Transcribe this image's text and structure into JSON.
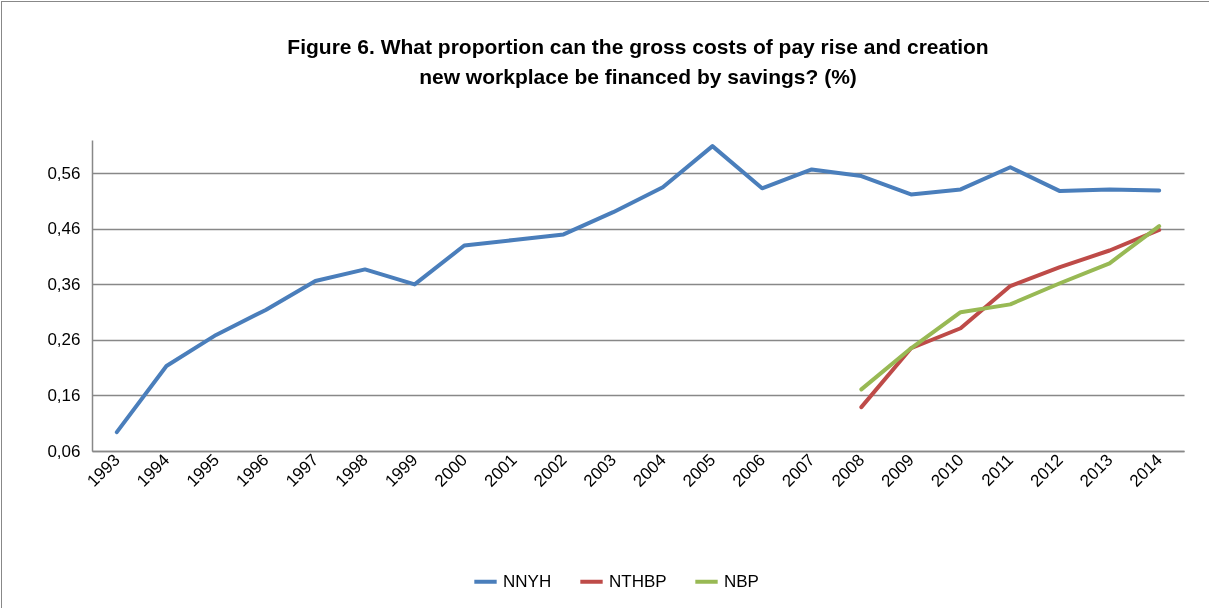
{
  "chart_data": {
    "type": "line",
    "title": "Figure 6. What proportion can the gross costs of pay rise and creation\nnew workplace be financed by savings? (%)",
    "categories": [
      "1993",
      "1994",
      "1995",
      "1996",
      "1997",
      "1998",
      "1999",
      "2000",
      "2001",
      "2002",
      "2003",
      "2004",
      "2005",
      "2006",
      "2007",
      "2008",
      "2009",
      "2010",
      "2011",
      "2012",
      "2013",
      "2014"
    ],
    "series": [
      {
        "name": "NNYH",
        "color": "#4a7ebb",
        "values": [
          0.094,
          0.213,
          0.269,
          0.314,
          0.366,
          0.387,
          0.36,
          0.43,
          0.44,
          0.45,
          0.49,
          0.535,
          0.609,
          0.533,
          0.567,
          0.555,
          0.522,
          0.531,
          0.571,
          0.528,
          0.531,
          0.529
        ]
      },
      {
        "name": "NTHBP",
        "color": "#be4b48",
        "values": [
          null,
          null,
          null,
          null,
          null,
          null,
          null,
          null,
          null,
          null,
          null,
          null,
          null,
          null,
          null,
          0.139,
          0.245,
          0.281,
          0.357,
          0.391,
          0.421,
          0.458
        ]
      },
      {
        "name": "NBP",
        "color": "#98b954",
        "values": [
          null,
          null,
          null,
          null,
          null,
          null,
          null,
          null,
          null,
          null,
          null,
          null,
          null,
          null,
          null,
          0.171,
          0.245,
          0.31,
          0.324,
          0.362,
          0.398,
          0.465
        ]
      }
    ],
    "ylim": [
      0.06,
      0.62
    ],
    "yticks": [
      {
        "value": 0.06,
        "label": "0,06"
      },
      {
        "value": 0.16,
        "label": "0,16"
      },
      {
        "value": 0.26,
        "label": "0,26"
      },
      {
        "value": 0.36,
        "label": "0,36"
      },
      {
        "value": 0.46,
        "label": "0,46"
      },
      {
        "value": 0.56,
        "label": "0,56"
      }
    ],
    "grid": "y",
    "legend": "bottom",
    "marker": "none",
    "line_style": "solid"
  }
}
